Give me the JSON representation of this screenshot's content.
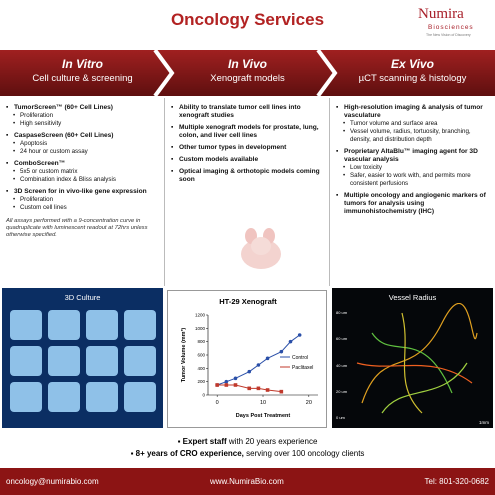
{
  "header": {
    "title": "Oncology Services",
    "logo": "Numira",
    "logo_sub": "Biosciences",
    "tagline": "The New Vision of Discovery"
  },
  "columns": [
    {
      "title": "In Vitro",
      "subtitle": "Cell culture & screening",
      "items": [
        {
          "text": "TumorScreen™ (60+ Cell Lines)",
          "subs": [
            "Proliferation",
            "High sensitivity"
          ]
        },
        {
          "text": "CaspaseScreen (60+ Cell Lines)",
          "subs": [
            "Apoptosis",
            "24 hour or custom assay"
          ]
        },
        {
          "text": "ComboScreen™",
          "subs": [
            "5x5 or custom matrix",
            "Combination index & Bliss analysis"
          ]
        },
        {
          "text": "3D Screen for in vivo-like gene expression",
          "subs": [
            "Proliferation",
            "Custom cell lines"
          ]
        }
      ],
      "note": "All assays performed with a 9-concentration curve in quadruplicate with luminescent readout at 72hrs unless otherwise specified."
    },
    {
      "title": "In Vivo",
      "subtitle": "Xenograft models",
      "items": [
        {
          "text": "Ability to translate tumor cell lines into xenograft studies"
        },
        {
          "text": "Multiple xenograft models for prostate, lung, colon, and liver cell lines"
        },
        {
          "text": "Other tumor types in development"
        },
        {
          "text": "Custom models available"
        },
        {
          "text": "Optical imaging & orthotopic models coming soon"
        }
      ]
    },
    {
      "title": "Ex Vivo",
      "subtitle": "µCT scanning & histology",
      "items": [
        {
          "text": "High-resolution imaging & analysis of tumor vasculature",
          "subs": [
            "Tumor volume and surface area",
            "Vessel volume, radius, tortuosity, branching, density, and distribution depth"
          ]
        },
        {
          "text": "Proprietary AltaBlu™ imaging agent for 3D vascular analysis",
          "subs": [
            "Low toxicity",
            "Safer, easier to work with, and permits more consistent perfusions"
          ]
        },
        {
          "text": "Multiple oncology and angiogenic markers of tumors for analysis using immunohistochemistry (IHC)"
        }
      ]
    }
  ],
  "panels": {
    "culture_title": "3D Culture",
    "vessel_title": "Vessel Radius",
    "vessel_scale": [
      "80 um",
      "60 um",
      "40 um",
      "20 um",
      "0 um"
    ],
    "scale_bar": "1mm"
  },
  "xenograft_chart": {
    "type": "line",
    "title": "HT-29 Xenograft",
    "x_label": "Days Post Treatment",
    "y_label": "Tumor Volume (mm³)",
    "x": [
      0,
      2,
      4,
      7,
      9,
      11,
      14,
      16,
      18
    ],
    "series": [
      {
        "name": "Control",
        "color": "#2a4fa8",
        "values": [
          150,
          200,
          250,
          350,
          450,
          550,
          650,
          800,
          900
        ]
      },
      {
        "name": "Paclitaxel",
        "color": "#c0392b",
        "values": [
          150,
          150,
          150,
          100,
          100,
          75,
          50,
          null,
          null
        ]
      }
    ],
    "xlim": [
      -2,
      22
    ],
    "xticks": [
      0,
      10,
      20
    ],
    "ylim": [
      0,
      1200
    ],
    "yticks": [
      0,
      200,
      400,
      600,
      800,
      1000,
      1200
    ]
  },
  "highlights": [
    {
      "bold": "Expert staff",
      "text": " with 20 years experience"
    },
    {
      "bold": "8+ years of CRO experience,",
      "text": " serving over 100 oncology clients"
    }
  ],
  "footer": {
    "email": "oncology@numirabio.com",
    "web": "www.NumiraBio.com",
    "tel": "Tel: 801-320-0682"
  }
}
